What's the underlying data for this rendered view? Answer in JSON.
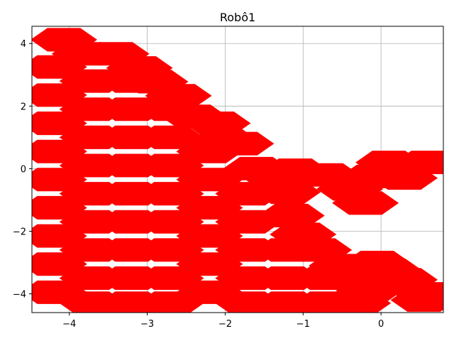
{
  "chart_data": {
    "type": "area",
    "title": "Robô1",
    "xlabel": "",
    "ylabel": "",
    "xlim": [
      -4.48,
      0.8
    ],
    "ylim": [
      -4.6,
      4.55
    ],
    "x_ticks": [
      -4,
      -3,
      -2,
      -1,
      0
    ],
    "x_tick_labels": [
      "−4",
      "−3",
      "−2",
      "−1",
      "0"
    ],
    "y_ticks": [
      4,
      2,
      0,
      -2,
      -4
    ],
    "y_tick_labels": [
      "4",
      "2",
      "0",
      "−2",
      "−4"
    ],
    "grid": true,
    "legend": "none",
    "hexagon_radius": 0.42,
    "fill_color": "#ff0000",
    "series": [
      {
        "hexagon_centers": [
          [
            -4.07,
            4.12
          ],
          [
            -3.8,
            3.67
          ],
          [
            -3.4,
            3.67
          ],
          [
            -3.1,
            3.22
          ],
          [
            -2.9,
            2.78
          ],
          [
            -2.6,
            2.33
          ],
          [
            -2.4,
            1.67
          ],
          [
            -2.1,
            1.45
          ],
          [
            -2.0,
            0.9
          ],
          [
            -1.8,
            0.8
          ],
          [
            -1.6,
            0.0
          ],
          [
            -1.4,
            -0.2
          ],
          [
            -1.1,
            -0.05
          ],
          [
            -1.2,
            -0.75
          ],
          [
            -1.15,
            -1.5
          ],
          [
            -1.0,
            -2.1
          ],
          [
            -0.8,
            -2.6
          ],
          [
            -0.5,
            -3.1
          ],
          [
            -0.2,
            -3.4
          ],
          [
            0.1,
            -3.25
          ],
          [
            0.3,
            -3.55
          ],
          [
            0.6,
            -4.0
          ],
          [
            0.55,
            -4.2
          ],
          [
            -0.05,
            -3.0
          ],
          [
            -0.15,
            -3.9
          ],
          [
            -4.2,
            3.25
          ],
          [
            -4.2,
            2.35
          ],
          [
            -4.2,
            1.45
          ],
          [
            -4.2,
            0.55
          ],
          [
            -4.2,
            -0.35
          ],
          [
            -4.2,
            -1.25
          ],
          [
            -4.2,
            -2.15
          ],
          [
            -4.2,
            -3.05
          ],
          [
            -4.2,
            -3.95
          ],
          [
            -3.7,
            2.8
          ],
          [
            -3.7,
            1.9
          ],
          [
            -3.7,
            1.0
          ],
          [
            -3.7,
            0.1
          ],
          [
            -3.7,
            -0.8
          ],
          [
            -3.7,
            -1.7
          ],
          [
            -3.7,
            -2.6
          ],
          [
            -3.7,
            -3.5
          ],
          [
            -3.7,
            -4.3
          ],
          [
            -3.2,
            2.8
          ],
          [
            -3.2,
            1.9
          ],
          [
            -3.2,
            1.0
          ],
          [
            -3.2,
            0.1
          ],
          [
            -3.2,
            -0.8
          ],
          [
            -3.2,
            -1.7
          ],
          [
            -3.2,
            -2.6
          ],
          [
            -3.2,
            -3.5
          ],
          [
            -3.2,
            -4.3
          ],
          [
            -2.7,
            1.9
          ],
          [
            -2.7,
            1.0
          ],
          [
            -2.7,
            0.1
          ],
          [
            -2.7,
            -0.8
          ],
          [
            -2.7,
            -1.7
          ],
          [
            -2.7,
            -2.6
          ],
          [
            -2.7,
            -3.5
          ],
          [
            -2.7,
            -4.3
          ],
          [
            -2.2,
            0.55
          ],
          [
            -2.2,
            -0.35
          ],
          [
            -2.2,
            -1.25
          ],
          [
            -2.2,
            -2.15
          ],
          [
            -2.2,
            -3.05
          ],
          [
            -2.2,
            -3.95
          ],
          [
            -1.7,
            -0.8
          ],
          [
            -1.7,
            -1.7
          ],
          [
            -1.7,
            -2.6
          ],
          [
            -1.7,
            -3.5
          ],
          [
            -1.7,
            -4.3
          ],
          [
            -1.2,
            -2.6
          ],
          [
            -1.2,
            -3.5
          ],
          [
            -1.2,
            -4.3
          ],
          [
            -0.7,
            -3.5
          ],
          [
            -0.7,
            -4.3
          ],
          [
            -0.3,
            -4.3
          ],
          [
            -0.7,
            -0.2
          ],
          [
            -0.4,
            -0.65
          ],
          [
            -0.2,
            -1.1
          ],
          [
            -0.1,
            -0.25
          ],
          [
            0.1,
            0.2
          ],
          [
            0.3,
            -0.3
          ],
          [
            0.6,
            0.2
          ]
        ]
      }
    ]
  }
}
